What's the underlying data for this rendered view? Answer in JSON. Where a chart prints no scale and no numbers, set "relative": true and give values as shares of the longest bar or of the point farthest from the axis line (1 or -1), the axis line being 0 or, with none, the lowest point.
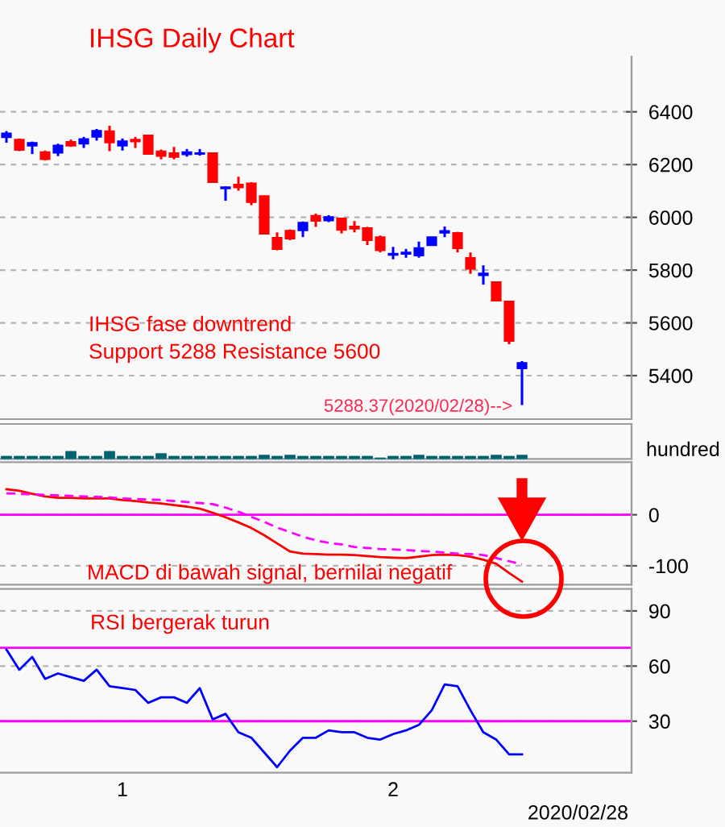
{
  "chart_data": [
    {
      "type": "candlestick",
      "title": "IHSG Daily Chart",
      "categories": [
        null,
        null,
        null,
        null,
        null,
        null,
        null,
        null,
        null,
        null,
        null,
        null,
        null,
        null,
        null,
        null,
        null,
        null,
        null,
        null,
        null,
        null,
        null,
        null,
        null,
        null,
        null,
        null,
        null,
        null,
        null,
        null,
        null,
        null,
        null,
        null,
        null,
        null,
        null,
        null,
        null,
        null,
        null,
        null,
        null,
        null,
        null,
        null,
        null
      ],
      "ohlc": [
        [
          6303,
          6327,
          6283,
          6319
        ],
        [
          6295,
          6299,
          6251,
          6255
        ],
        [
          6271,
          6287,
          6240,
          6283
        ],
        [
          6248,
          6253,
          6216,
          6220
        ],
        [
          6244,
          6279,
          6232,
          6273
        ],
        [
          6287,
          6295,
          6267,
          6271
        ],
        [
          6279,
          6305,
          6263,
          6297
        ],
        [
          6305,
          6335,
          6291,
          6329
        ],
        [
          6327,
          6347,
          6251,
          6283
        ],
        [
          6271,
          6299,
          6253,
          6289
        ],
        [
          6295,
          6305,
          6263,
          6287
        ],
        [
          6311,
          6313,
          6238,
          6240
        ],
        [
          6251,
          6257,
          6220,
          6232
        ],
        [
          6244,
          6267,
          6220,
          6228
        ],
        [
          6238,
          6259,
          6230,
          6248
        ],
        [
          6240,
          6259,
          6234,
          6244
        ],
        [
          6244,
          6246,
          6131,
          6133
        ],
        [
          6109,
          6117,
          6063,
          6115
        ],
        [
          6125,
          6154,
          6101,
          6113
        ],
        [
          6129,
          6133,
          6046,
          6057
        ],
        [
          6081,
          6083,
          5935,
          5937
        ],
        [
          5923,
          5943,
          5875,
          5879
        ],
        [
          5950,
          5954,
          5913,
          5919
        ],
        [
          5950,
          5984,
          5925,
          5980
        ],
        [
          6006,
          6014,
          5964,
          5986
        ],
        [
          5988,
          6008,
          5982,
          6002
        ],
        [
          5996,
          5998,
          5939,
          5952
        ],
        [
          5966,
          5986,
          5943,
          5956
        ],
        [
          5960,
          5964,
          5895,
          5913
        ],
        [
          5925,
          5931,
          5867,
          5875
        ],
        [
          5857,
          5888,
          5841,
          5863
        ],
        [
          5861,
          5880,
          5847,
          5867
        ],
        [
          5855,
          5908,
          5847,
          5884
        ],
        [
          5894,
          5927,
          5892,
          5925
        ],
        [
          5941,
          5965,
          5925,
          5949
        ],
        [
          5941,
          5945,
          5867,
          5882
        ],
        [
          5847,
          5867,
          5786,
          5804
        ],
        [
          5780,
          5818,
          5745,
          5788
        ],
        [
          5755,
          5757,
          5682,
          5684
        ],
        [
          5682,
          5684,
          5519,
          5531
        ],
        [
          5427,
          5455,
          5288.37,
          5449
        ],
        null,
        null,
        null,
        null,
        null,
        null,
        null,
        null
      ],
      "colors": [
        "#0000ff",
        "#ff0000",
        "#0000ff",
        "#ff0000",
        "#0000ff",
        "#ff0000",
        "#0000ff",
        "#0000ff",
        "#ff0000",
        "#0000ff",
        "#ff0000",
        "#ff0000",
        "#ff0000",
        "#ff0000",
        "#0000ff",
        "#0000ff",
        "#ff0000",
        "#0000ff",
        "#ff0000",
        "#ff0000",
        "#ff0000",
        "#ff0000",
        "#ff0000",
        "#0000ff",
        "#ff0000",
        "#0000ff",
        "#ff0000",
        "#ff0000",
        "#ff0000",
        "#ff0000",
        "#0000ff",
        "#0000ff",
        "#0000ff",
        "#0000ff",
        "#0000ff",
        "#ff0000",
        "#ff0000",
        "#0000ff",
        "#ff0000",
        "#ff0000",
        "#0000ff",
        null,
        null,
        null,
        null,
        null,
        null,
        null,
        null
      ],
      "ylim": [
        5235,
        6610
      ],
      "yticks": [
        5400,
        5600,
        5800,
        6000,
        6200,
        6400
      ],
      "grid": "y",
      "tick_labels": "y",
      "annotations": [
        "IHSG fase downtrend",
        "Support 5288 Resistance 5600",
        "5288.37(2020/02/28)-->"
      ]
    },
    {
      "type": "bar",
      "relative": true,
      "ylabel": "hundred",
      "tick_labels": false,
      "color": "#006470",
      "categories": [
        null,
        null,
        null,
        null,
        null,
        null,
        null,
        null,
        null,
        null,
        null,
        null,
        null,
        null,
        null,
        null,
        null,
        null,
        null,
        null,
        null,
        null,
        null,
        null,
        null,
        null,
        null,
        null,
        null,
        null,
        null,
        null,
        null,
        null,
        null,
        null,
        null,
        null,
        null,
        null,
        null,
        null,
        null,
        null,
        null,
        null,
        null,
        null,
        null
      ],
      "values": [
        0.36,
        0.36,
        0.36,
        0.36,
        0.36,
        1.0,
        0.36,
        0.36,
        1.0,
        0.36,
        0.36,
        0.36,
        0.71,
        0.36,
        0.36,
        0.36,
        0.36,
        0.36,
        0.36,
        0.36,
        0.5,
        0.36,
        0.5,
        0.36,
        0.36,
        0.36,
        0.36,
        0.36,
        0.36,
        0.14,
        0.36,
        0.36,
        0.5,
        0.36,
        0.36,
        0.36,
        0.36,
        0.36,
        0.5,
        0.36,
        0.5,
        null,
        null,
        null,
        null,
        null,
        null,
        null,
        null
      ]
    },
    {
      "type": "line",
      "tick_labels": "y",
      "grid": "y",
      "categories": [
        null,
        null,
        null,
        null,
        null,
        null,
        null,
        null,
        null,
        null,
        null,
        null,
        null,
        null,
        null,
        null,
        null,
        null,
        null,
        null,
        null,
        null,
        null,
        null,
        null,
        null,
        null,
        null,
        null,
        null,
        null,
        null,
        null,
        null,
        null,
        null,
        null,
        null,
        null,
        null,
        null,
        null,
        null,
        null,
        null,
        null,
        null,
        null,
        null
      ],
      "series": [
        {
          "color": "#ff0000",
          "line_style": "solid",
          "values": [
            50,
            47,
            41,
            36,
            33,
            33,
            32,
            32,
            32,
            29,
            27,
            24,
            22,
            19,
            16,
            12,
            4,
            -5,
            -15,
            -26,
            -40,
            -56,
            -72,
            -76,
            -77,
            -78,
            -78,
            -79,
            -81,
            -83,
            -84,
            -85,
            -82,
            -79,
            -78,
            -79,
            -82,
            -88,
            -96,
            -114,
            -131,
            null,
            null,
            null,
            null,
            null,
            null,
            null,
            null
          ]
        },
        {
          "color": "#ff00ff",
          "line_style": "dashed",
          "values": [
            42,
            41,
            40,
            39,
            38,
            37,
            36,
            35,
            34,
            32,
            31,
            30,
            29,
            27,
            25,
            23,
            21,
            14,
            6,
            -4,
            -14,
            -25,
            -34,
            -43,
            -50,
            -55,
            -58,
            -63,
            -65,
            -67,
            -68,
            -69,
            -71,
            -72,
            -74,
            -76,
            -77,
            -79,
            -85,
            -91,
            -97,
            null,
            null,
            null,
            null,
            null,
            null,
            null,
            null
          ]
        }
      ],
      "ylim": [
        -137,
        103
      ],
      "yticks": [
        -100,
        0
      ],
      "ref_lines": [
        {
          "axis": "y",
          "value": 0,
          "color": "#ff00ff"
        }
      ],
      "annotations": [
        "MACD di bawah signal, bernilai negatif"
      ]
    },
    {
      "type": "line",
      "grid": "y",
      "color": "#0000ff",
      "categories": [
        null,
        null,
        null,
        null,
        null,
        null,
        null,
        null,
        null,
        "1",
        null,
        null,
        null,
        null,
        null,
        null,
        null,
        null,
        null,
        null,
        null,
        null,
        null,
        null,
        null,
        null,
        null,
        null,
        null,
        null,
        "2",
        null,
        null,
        null,
        null,
        null,
        null,
        null,
        null,
        null,
        null,
        null,
        null,
        null,
        null,
        null,
        null,
        null,
        null
      ],
      "values": [
        69,
        58,
        65,
        53,
        56,
        54,
        52,
        58,
        49,
        48,
        47,
        40,
        43,
        43,
        40,
        48,
        31,
        34,
        24,
        21,
        13,
        5,
        14,
        21,
        21,
        25,
        24,
        24,
        21,
        20,
        23,
        25,
        28,
        36,
        50,
        49,
        36,
        24,
        20,
        12,
        12,
        null,
        null,
        null,
        null,
        null,
        null,
        null,
        null
      ],
      "ylim": [
        2,
        102
      ],
      "yticks": [
        30,
        60,
        90
      ],
      "ref_lines": [
        {
          "axis": "y",
          "value": 70,
          "color": "#ff00ff"
        },
        {
          "axis": "y",
          "value": 30,
          "color": "#ff00ff"
        }
      ],
      "annotations": [
        "RSI bergerak turun",
        "2020/02/28"
      ]
    }
  ]
}
